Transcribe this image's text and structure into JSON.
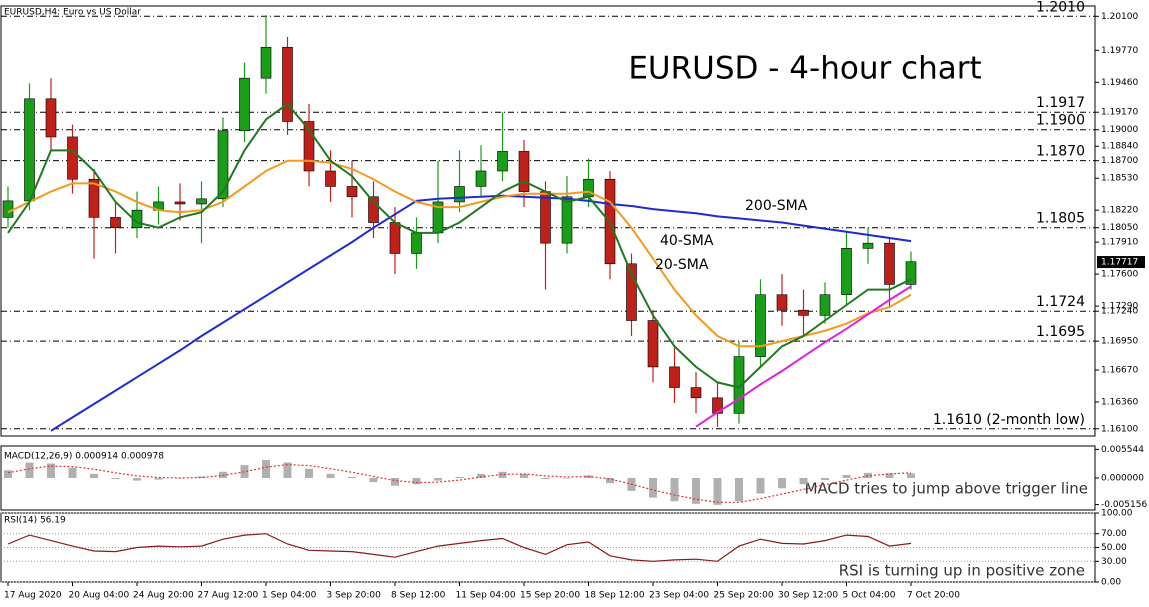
{
  "chart_data": [
    {
      "type": "candlestick",
      "title": "EURUSD - 4-hour chart",
      "subtitle": "EURUSD,H4: Euro vs US Dollar",
      "categories": [
        "17 Aug 2020",
        null,
        null,
        "20 Aug 04:00",
        null,
        null,
        "24 Aug 20:00",
        null,
        null,
        "27 Aug 12:00",
        null,
        null,
        "1 Sep 04:00",
        null,
        null,
        "3 Sep 20:00",
        null,
        null,
        "8 Sep 12:00",
        null,
        null,
        "11 Sep 04:00",
        null,
        null,
        "15 Sep 20:00",
        null,
        null,
        "18 Sep 12:00",
        null,
        null,
        "23 Sep 04:00",
        null,
        null,
        "25 Sep 20:00",
        null,
        null,
        "30 Sep 12:00",
        null,
        null,
        "5 Oct 04:00",
        null,
        null,
        "7 Oct 20:00"
      ],
      "open": [
        1.1815,
        1.1831,
        1.193,
        1.1893,
        1.1852,
        1.1815,
        1.1805,
        1.1822,
        1.183,
        1.1828,
        1.1833,
        1.1899,
        1.195,
        1.198,
        1.1908,
        1.186,
        1.1845,
        1.1835,
        1.181,
        1.178,
        1.18,
        1.183,
        1.1845,
        1.186,
        1.1879,
        1.184,
        1.179,
        1.1835,
        1.1852,
        1.177,
        1.1715,
        1.167,
        1.165,
        1.164,
        1.1625,
        1.168,
        1.174,
        1.1725,
        1.172,
        1.174,
        1.1785,
        1.179,
        1.175
      ],
      "high": [
        1.1845,
        1.1945,
        1.195,
        1.1905,
        1.1862,
        1.183,
        1.184,
        1.1845,
        1.1848,
        1.185,
        1.1912,
        1.1965,
        1.2011,
        1.199,
        1.1925,
        1.188,
        1.187,
        1.185,
        1.1825,
        1.1815,
        1.187,
        1.188,
        1.1885,
        1.1917,
        1.189,
        1.185,
        1.1855,
        1.1872,
        1.186,
        1.178,
        1.1725,
        1.169,
        1.1665,
        1.1655,
        1.1695,
        1.1755,
        1.176,
        1.1745,
        1.1752,
        1.1802,
        1.1805,
        1.1795,
        1.1782
      ],
      "low": [
        1.1805,
        1.1822,
        1.188,
        1.1838,
        1.1775,
        1.178,
        1.1795,
        1.1808,
        1.1812,
        1.179,
        1.1825,
        1.1888,
        1.1935,
        1.1895,
        1.1845,
        1.183,
        1.1815,
        1.1795,
        1.176,
        1.1765,
        1.179,
        1.182,
        1.1835,
        1.185,
        1.1825,
        1.1745,
        1.178,
        1.1825,
        1.1755,
        1.17,
        1.1655,
        1.1635,
        1.1625,
        1.1612,
        1.1615,
        1.167,
        1.171,
        1.17,
        1.1712,
        1.173,
        1.177,
        1.1728,
        1.1745
      ],
      "close": [
        1.1831,
        1.193,
        1.1893,
        1.1852,
        1.1815,
        1.1805,
        1.1822,
        1.183,
        1.1828,
        1.1833,
        1.1899,
        1.195,
        1.198,
        1.1908,
        1.186,
        1.1845,
        1.1835,
        1.181,
        1.178,
        1.18,
        1.183,
        1.1845,
        1.186,
        1.1879,
        1.184,
        1.179,
        1.1835,
        1.1852,
        1.177,
        1.1715,
        1.167,
        1.165,
        1.164,
        1.1625,
        1.168,
        1.174,
        1.1725,
        1.172,
        1.174,
        1.1785,
        1.179,
        1.175,
        1.1772
      ],
      "up_color": "#1a9e1a",
      "down_color": "#c0201a",
      "series": [
        {
          "name": "200-SMA",
          "color": "#1f2bd1",
          "values": [
            null,
            null,
            1.1608,
            1.1621,
            1.1634,
            1.1647,
            1.166,
            1.1673,
            1.1686,
            1.17,
            1.1713,
            1.1726,
            1.1739,
            1.1752,
            1.1765,
            1.1778,
            1.1791,
            1.1805,
            1.1818,
            1.1831,
            1.1833,
            1.1834,
            1.1835,
            1.1836,
            1.1835,
            1.1834,
            1.1833,
            1.1831,
            1.1828,
            1.1826,
            1.1823,
            1.1821,
            1.1819,
            1.1816,
            1.1814,
            1.1812,
            1.181,
            1.1807,
            1.1804,
            1.1801,
            1.1798,
            1.1795,
            1.1792
          ]
        },
        {
          "name": "40-SMA",
          "color": "#f39a1e",
          "values": [
            1.182,
            1.183,
            1.184,
            1.1848,
            1.1848,
            1.184,
            1.183,
            1.1822,
            1.182,
            1.1822,
            1.183,
            1.1845,
            1.186,
            1.187,
            1.187,
            1.1868,
            1.1862,
            1.1852,
            1.184,
            1.183,
            1.1825,
            1.1825,
            1.183,
            1.1835,
            1.1838,
            1.1838,
            1.1838,
            1.184,
            1.183,
            1.1805,
            1.1775,
            1.1745,
            1.172,
            1.17,
            1.169,
            1.169,
            1.1695,
            1.17,
            1.1705,
            1.1712,
            1.1722,
            1.1728,
            1.174
          ]
        },
        {
          "name": "20-SMA",
          "color": "#1f7a1f",
          "values": [
            1.18,
            1.183,
            1.188,
            1.188,
            1.186,
            1.183,
            1.181,
            1.1805,
            1.1815,
            1.182,
            1.184,
            1.188,
            1.191,
            1.1925,
            1.19,
            1.187,
            1.1855,
            1.183,
            1.181,
            1.18,
            1.18,
            1.181,
            1.1825,
            1.184,
            1.185,
            1.184,
            1.183,
            1.1835,
            1.181,
            1.176,
            1.172,
            1.169,
            1.167,
            1.1655,
            1.165,
            1.167,
            1.169,
            1.17,
            1.1715,
            1.173,
            1.1745,
            1.1745,
            1.1755
          ]
        },
        {
          "color": "#e020e0",
          "values": [
            null,
            null,
            null,
            null,
            null,
            null,
            null,
            null,
            null,
            null,
            null,
            null,
            null,
            null,
            null,
            null,
            null,
            null,
            null,
            null,
            null,
            null,
            null,
            null,
            null,
            null,
            null,
            null,
            null,
            null,
            null,
            null,
            1.1612,
            1.1626,
            1.1639,
            1.1653,
            1.1666,
            1.168,
            1.1694,
            1.1707,
            1.1721,
            1.1735,
            1.1748
          ]
        }
      ],
      "levels": [
        {
          "value": 1.201,
          "label": "1.2010",
          "color": "#e02020"
        },
        {
          "value": 1.1917,
          "label": "1.1917",
          "color": "#e02020"
        },
        {
          "value": 1.19,
          "label": "1.1900",
          "color": "#e02020"
        },
        {
          "value": 1.187,
          "label": "1.1870",
          "color": "#e02020"
        },
        {
          "value": 1.1805,
          "label": "1.1805",
          "color": "#e02020"
        },
        {
          "value": 1.1724,
          "label": "1.1724",
          "color": "#1a9e1a"
        },
        {
          "value": 1.1695,
          "label": "1.1695",
          "color": "#1a9e1a"
        },
        {
          "value": 1.161,
          "label": "1.1610 (2-month low)",
          "color": "#1a9e1a"
        }
      ],
      "last_price": {
        "value": 1.17717,
        "label": "1.17717"
      },
      "ylim": [
        1.1603,
        1.202
      ],
      "yticks": [
        {
          "value": 1.201,
          "label": "1.20100"
        },
        {
          "value": 1.1977,
          "label": "1.19770"
        },
        {
          "value": 1.1946,
          "label": "1.19460"
        },
        {
          "value": 1.1917,
          "label": "1.19170"
        },
        {
          "value": 1.19,
          "label": "1.19000"
        },
        {
          "value": 1.1884,
          "label": "1.18840"
        },
        {
          "value": 1.187,
          "label": "1.18700"
        },
        {
          "value": 1.1853,
          "label": "1.18530"
        },
        {
          "value": 1.1822,
          "label": "1.18220"
        },
        {
          "value": 1.1805,
          "label": "1.18050"
        },
        {
          "value": 1.1791,
          "label": "1.17910"
        },
        {
          "value": 1.176,
          "label": "1.17600"
        },
        {
          "value": 1.1729,
          "label": "1.17290"
        },
        {
          "value": 1.1724,
          "label": "1.17240"
        },
        {
          "value": 1.1695,
          "label": "1.16950"
        },
        {
          "value": 1.1667,
          "label": "1.16670"
        },
        {
          "value": 1.1636,
          "label": "1.16360"
        },
        {
          "value": 1.161,
          "label": "1.16100"
        }
      ]
    },
    {
      "type": "macd",
      "title": "MACD(12,26,9) 0.000914 0.000978",
      "annotation": "MACD tries to jump above trigger line",
      "series": [
        {
          "kind": "bar",
          "color": "#b0b0b0",
          "values": [
            0.0015,
            0.003,
            0.0028,
            0.002,
            0.0008,
            -0.0002,
            -0.0005,
            -0.0003,
            0.0,
            0.0003,
            0.0012,
            0.0025,
            0.0035,
            0.003,
            0.0018,
            0.0008,
            0.0002,
            -0.0008,
            -0.0015,
            -0.0012,
            -0.0005,
            0.0002,
            0.0008,
            0.0012,
            0.0008,
            -0.0002,
            0.0,
            0.0005,
            -0.001,
            -0.0025,
            -0.0038,
            -0.0045,
            -0.005,
            -0.0052,
            -0.0045,
            -0.003,
            -0.002,
            -0.0012,
            -0.0004,
            0.0006,
            0.001,
            0.0009,
            0.0009
          ]
        },
        {
          "kind": "dotted",
          "color": "#e03030",
          "values": [
            0.001,
            0.0018,
            0.0023,
            0.0022,
            0.0017,
            0.001,
            0.0004,
            0.0001,
            0.0,
            0.0001,
            0.0005,
            0.0012,
            0.0021,
            0.0026,
            0.0024,
            0.0018,
            0.0011,
            0.0003,
            -0.0005,
            -0.0009,
            -0.0008,
            -0.0004,
            0.0002,
            0.0007,
            0.0008,
            0.0004,
            0.0002,
            0.0003,
            -0.0002,
            -0.0012,
            -0.0023,
            -0.0033,
            -0.0041,
            -0.0047,
            -0.0047,
            -0.004,
            -0.0031,
            -0.0022,
            -0.0013,
            -0.0004,
            0.0004,
            0.0008,
            0.001
          ]
        }
      ],
      "ylim": [
        -0.0062,
        0.0062
      ],
      "yticks": [
        0.005544,
        {
          "value": 0,
          "label": "0.000000"
        },
        -0.005156
      ]
    },
    {
      "type": "line",
      "title": "RSI(14) 56.19",
      "annotation": "RSI is turning up in positive zone",
      "series": [
        {
          "kind": "line",
          "color": "#8b1a1a",
          "values": [
            55,
            68,
            60,
            52,
            45,
            44,
            50,
            52,
            51,
            52,
            62,
            68,
            70,
            55,
            46,
            45,
            44,
            40,
            36,
            44,
            52,
            56,
            60,
            63,
            50,
            40,
            54,
            58,
            38,
            32,
            30,
            32,
            33,
            30,
            52,
            62,
            56,
            55,
            60,
            68,
            66,
            52,
            56
          ]
        }
      ],
      "ylim": [
        0,
        100
      ],
      "grid": true,
      "yticks": [
        {
          "value": 100,
          "label": "100.00"
        },
        {
          "value": 70,
          "label": "70.00"
        },
        {
          "value": 50,
          "label": "50.00"
        },
        {
          "value": 30,
          "label": "30.00"
        },
        {
          "value": 0,
          "label": "0.00"
        }
      ]
    }
  ]
}
